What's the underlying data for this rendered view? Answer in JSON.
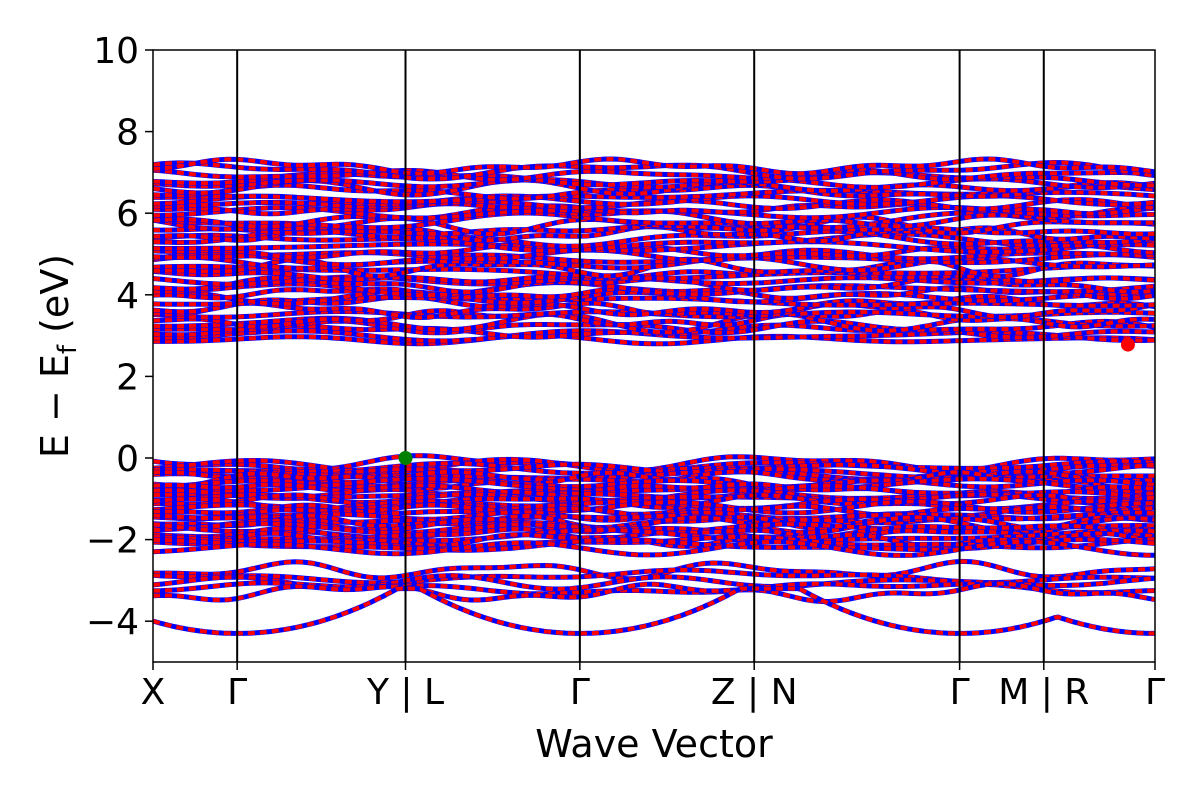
{
  "chart_data": {
    "type": "line",
    "title": "",
    "xlabel": "Wave Vector",
    "ylabel": "E − E",
    "ylabel_sub": "f",
    "ylabel_unit": " (eV)",
    "ylim": [
      -5,
      10
    ],
    "yticks": [
      {
        "value": -4,
        "label": "−4"
      },
      {
        "value": -2,
        "label": "−2"
      },
      {
        "value": 0,
        "label": "0"
      },
      {
        "value": 2,
        "label": "2"
      },
      {
        "value": 4,
        "label": "4"
      },
      {
        "value": 6,
        "label": "6"
      },
      {
        "value": 8,
        "label": "8"
      },
      {
        "value": 10,
        "label": "10"
      }
    ],
    "kpath_ticks": [
      {
        "pos": 0.0,
        "label": "X"
      },
      {
        "pos": 0.084,
        "label": "Γ"
      },
      {
        "pos": 0.252,
        "label": "Y | L"
      },
      {
        "pos": 0.426,
        "label": "Γ"
      },
      {
        "pos": 0.6,
        "label": "Z | N"
      },
      {
        "pos": 0.805,
        "label": "Γ"
      },
      {
        "pos": 0.889,
        "label": "M | R"
      },
      {
        "pos": 1.0,
        "label": "Γ"
      }
    ],
    "series_colors": {
      "spin_up": "#0000ff",
      "spin_down": "#ff0000"
    },
    "band_regions": {
      "valence_top": 0.0,
      "valence_dense_bottom": -2.3,
      "conduction_bottom": 2.8,
      "conduction_dense_top": 7.3,
      "lowest_band_min": -4.3,
      "conduction_max": 7.6
    },
    "vbm": {
      "k": 0.252,
      "E": 0.0,
      "color": "#008000"
    },
    "cbm": {
      "k": 0.973,
      "E": 2.78,
      "color": "#ff0000"
    },
    "grid": false,
    "legend": "none"
  }
}
